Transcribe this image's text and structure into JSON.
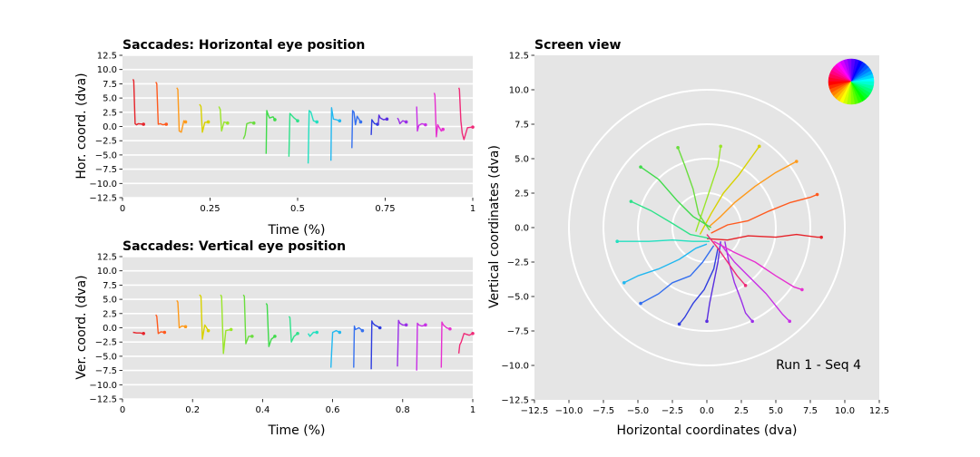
{
  "colors": {
    "panel_bg": "#e5e5e5",
    "grid": "#ffffff",
    "hue_order": [
      "#ff0000",
      "#ff8000",
      "#ffff00",
      "#80ff00",
      "#00ff80",
      "#00ffff",
      "#0080ff",
      "#0000ff",
      "#8000ff",
      "#ff00ff"
    ]
  },
  "chart_data": [
    {
      "id": "horizontal",
      "type": "line",
      "title": "Saccades: Horizontal eye position",
      "xlabel": "Time (%)",
      "ylabel": "Hor. coord. (dva)",
      "xlim": [
        0,
        1
      ],
      "ylim": [
        -12.5,
        12.5
      ],
      "xticks": [
        0,
        0.25,
        0.5,
        0.75,
        1
      ],
      "xtick_labels": [
        "0",
        "0.25",
        "0.5",
        "0.75",
        "1"
      ],
      "yticks": [
        12.5,
        10.0,
        7.5,
        5.0,
        2.5,
        0.0,
        -2.5,
        -5.0,
        -7.5,
        -10.0,
        -12.5
      ],
      "ytick_labels": [
        "12.5",
        "10.0",
        "7.5",
        "5.0",
        "2.5",
        "0.0",
        "−2.5",
        "−5.0",
        "−7.5",
        "−10.0",
        "−12.5"
      ],
      "grid": true,
      "series": [
        {
          "color": "#e6232a",
          "x": [
            0.03,
            0.032,
            0.036,
            0.04,
            0.045,
            0.06
          ],
          "y": [
            8.3,
            8.0,
            0.5,
            0.3,
            0.5,
            0.4
          ]
        },
        {
          "color": "#ff5a1e",
          "x": [
            0.095,
            0.098,
            0.102,
            0.108,
            0.115,
            0.125
          ],
          "y": [
            7.8,
            7.5,
            0.4,
            0.5,
            0.3,
            0.4
          ]
        },
        {
          "color": "#ff9a1a",
          "x": [
            0.155,
            0.158,
            0.162,
            0.168,
            0.175,
            0.18
          ],
          "y": [
            6.8,
            6.5,
            -0.8,
            -1.0,
            1.0,
            0.8
          ]
        },
        {
          "color": "#d8d200",
          "x": [
            0.22,
            0.224,
            0.228,
            0.235,
            0.245
          ],
          "y": [
            3.9,
            3.5,
            -1.0,
            0.7,
            0.8
          ]
        },
        {
          "color": "#9ae52a",
          "x": [
            0.275,
            0.279,
            0.283,
            0.29,
            0.3
          ],
          "y": [
            3.5,
            3.0,
            -0.8,
            0.8,
            0.6
          ]
        },
        {
          "color": "#6add3e",
          "x": [
            0.345,
            0.35,
            0.355,
            0.365,
            0.375
          ],
          "y": [
            -2.2,
            -1.5,
            0.5,
            0.7,
            0.6
          ]
        },
        {
          "color": "#3fdb4a",
          "x": [
            0.41,
            0.412,
            0.416,
            0.42,
            0.43,
            0.435
          ],
          "y": [
            -4.8,
            2.8,
            2.0,
            1.5,
            1.7,
            1.2
          ]
        },
        {
          "color": "#2ee28a",
          "x": [
            0.475,
            0.478,
            0.482,
            0.49,
            0.5
          ],
          "y": [
            -5.3,
            2.3,
            2.0,
            1.5,
            1.0
          ]
        },
        {
          "color": "#22e0c0",
          "x": [
            0.53,
            0.533,
            0.538,
            0.545,
            0.555
          ],
          "y": [
            -6.5,
            2.8,
            2.5,
            1.0,
            0.8
          ]
        },
        {
          "color": "#22b8f0",
          "x": [
            0.595,
            0.597,
            0.602,
            0.61,
            0.62
          ],
          "y": [
            -6.0,
            3.3,
            1.3,
            1.2,
            1.0
          ]
        },
        {
          "color": "#3570ef",
          "x": [
            0.655,
            0.657,
            0.661,
            0.665,
            0.67,
            0.68
          ],
          "y": [
            -3.8,
            2.8,
            2.5,
            0.3,
            1.8,
            0.8
          ]
        },
        {
          "color": "#2f3de0",
          "x": [
            0.71,
            0.712,
            0.716,
            0.72,
            0.728
          ],
          "y": [
            -1.5,
            1.2,
            0.8,
            0.5,
            0.4
          ]
        },
        {
          "color": "#5a2fe0",
          "x": [
            0.73,
            0.732,
            0.736,
            0.745,
            0.755
          ],
          "y": [
            0.3,
            2.0,
            1.5,
            1.2,
            1.3
          ]
        },
        {
          "color": "#9a2fe8",
          "x": [
            0.785,
            0.788,
            0.792,
            0.8,
            0.81
          ],
          "y": [
            1.5,
            1.2,
            0.5,
            1.0,
            0.8
          ]
        },
        {
          "color": "#c82fe6",
          "x": [
            0.84,
            0.842,
            0.846,
            0.855,
            0.865
          ],
          "y": [
            3.5,
            -0.8,
            0.2,
            0.5,
            0.3
          ]
        },
        {
          "color": "#e62fd0",
          "x": [
            0.89,
            0.892,
            0.896,
            0.9,
            0.91,
            0.915
          ],
          "y": [
            5.9,
            5.5,
            -1.8,
            0.3,
            -0.8,
            -0.5
          ]
        },
        {
          "color": "#f02a78",
          "x": [
            0.96,
            0.962,
            0.966,
            0.97,
            0.975,
            0.985,
            1.0
          ],
          "y": [
            6.8,
            6.5,
            1.0,
            -1.2,
            -2.3,
            -0.2,
            -0.1
          ]
        }
      ]
    },
    {
      "id": "vertical",
      "type": "line",
      "title": "Saccades: Vertical eye position",
      "xlabel": "Time (%)",
      "ylabel": "Ver. coord. (dva)",
      "xlim": [
        0,
        1
      ],
      "ylim": [
        -12.5,
        12.5
      ],
      "xticks": [
        0,
        0.2,
        0.4,
        0.6,
        0.8,
        1
      ],
      "xtick_labels": [
        "0",
        "0.2",
        "0.4",
        "0.6",
        "0.8",
        "1"
      ],
      "yticks": [
        12.5,
        10.0,
        7.5,
        5.0,
        2.5,
        0.0,
        -2.5,
        -5.0,
        -7.5,
        -10.0,
        -12.5
      ],
      "ytick_labels": [
        "12.5",
        "10.0",
        "7.5",
        "5.0",
        "2.5",
        "0.0",
        "−2.5",
        "−5.0",
        "−7.5",
        "−10.0",
        "−12.5"
      ],
      "grid": true,
      "series": [
        {
          "color": "#e6232a",
          "x": [
            0.03,
            0.04,
            0.05,
            0.06
          ],
          "y": [
            -0.8,
            -0.9,
            -0.9,
            -1.0
          ]
        },
        {
          "color": "#ff5a1e",
          "x": [
            0.095,
            0.098,
            0.102,
            0.11,
            0.12
          ],
          "y": [
            2.3,
            2.0,
            -1.0,
            -0.7,
            -0.8
          ]
        },
        {
          "color": "#ff9a1a",
          "x": [
            0.155,
            0.158,
            0.162,
            0.17,
            0.18
          ],
          "y": [
            4.8,
            4.5,
            0.0,
            0.3,
            0.2
          ]
        },
        {
          "color": "#d8d200",
          "x": [
            0.22,
            0.224,
            0.228,
            0.235,
            0.245
          ],
          "y": [
            5.8,
            5.5,
            -2.0,
            0.5,
            -0.5
          ]
        },
        {
          "color": "#9ae52a",
          "x": [
            0.28,
            0.283,
            0.288,
            0.295,
            0.31
          ],
          "y": [
            5.8,
            5.5,
            -4.5,
            -0.5,
            -0.3
          ]
        },
        {
          "color": "#6add3e",
          "x": [
            0.345,
            0.348,
            0.352,
            0.36,
            0.37
          ],
          "y": [
            5.8,
            5.5,
            -2.8,
            -1.5,
            -1.5
          ]
        },
        {
          "color": "#3fdb4a",
          "x": [
            0.41,
            0.413,
            0.418,
            0.425,
            0.435
          ],
          "y": [
            4.3,
            4.0,
            -3.3,
            -2.0,
            -1.5
          ]
        },
        {
          "color": "#2ee28a",
          "x": [
            0.475,
            0.478,
            0.482,
            0.49,
            0.5
          ],
          "y": [
            2.0,
            1.8,
            -2.5,
            -1.5,
            -1.0
          ]
        },
        {
          "color": "#22e0c0",
          "x": [
            0.53,
            0.535,
            0.545,
            0.555
          ],
          "y": [
            -1.0,
            -1.5,
            -0.8,
            -0.8
          ]
        },
        {
          "color": "#22b8f0",
          "x": [
            0.595,
            0.597,
            0.6,
            0.61,
            0.62
          ],
          "y": [
            -7.0,
            -4.5,
            -0.8,
            -0.5,
            -0.8
          ]
        },
        {
          "color": "#3570ef",
          "x": [
            0.66,
            0.662,
            0.665,
            0.675,
            0.685
          ],
          "y": [
            -7.0,
            0.3,
            -0.3,
            0.0,
            -0.5
          ]
        },
        {
          "color": "#2f3de0",
          "x": [
            0.71,
            0.712,
            0.715,
            0.72,
            0.735
          ],
          "y": [
            -7.3,
            1.2,
            0.8,
            0.5,
            0.0
          ]
        },
        {
          "color": "#9a2fe8",
          "x": [
            0.785,
            0.788,
            0.792,
            0.8,
            0.81
          ],
          "y": [
            -6.8,
            1.3,
            0.8,
            0.5,
            0.5
          ]
        },
        {
          "color": "#c82fe6",
          "x": [
            0.84,
            0.842,
            0.846,
            0.855,
            0.865
          ],
          "y": [
            -7.5,
            0.8,
            0.5,
            0.3,
            0.5
          ]
        },
        {
          "color": "#e62fd0",
          "x": [
            0.91,
            0.912,
            0.916,
            0.925,
            0.935
          ],
          "y": [
            -7.0,
            1.0,
            0.5,
            0.0,
            -0.2
          ]
        },
        {
          "color": "#f02a78",
          "x": [
            0.96,
            0.963,
            0.967,
            0.975,
            0.99,
            1.0
          ],
          "y": [
            -4.5,
            -3.0,
            -2.5,
            -1.0,
            -1.3,
            -1.0
          ]
        }
      ]
    },
    {
      "id": "screen",
      "type": "line",
      "title": "Screen view",
      "xlabel": "Horizontal coordinates (dva)",
      "ylabel": "Vertical coordinates (dva)",
      "xlim": [
        -12.5,
        12.5
      ],
      "ylim": [
        -12.5,
        12.5
      ],
      "xticks": [
        -12.5,
        -10.0,
        -7.5,
        -5.0,
        -2.5,
        0.0,
        2.5,
        5.0,
        7.5,
        10.0,
        12.5
      ],
      "xtick_labels": [
        "−12.5",
        "−10.0",
        "−7.5",
        "−5.0",
        "−2.5",
        "0.0",
        "2.5",
        "5.0",
        "7.5",
        "10.0",
        "12.5"
      ],
      "yticks": [
        12.5,
        10.0,
        7.5,
        5.0,
        2.5,
        0.0,
        -2.5,
        -5.0,
        -7.5,
        -10.0,
        -12.5
      ],
      "ytick_labels": [
        "12.5",
        "10.0",
        "7.5",
        "5.0",
        "2.5",
        "0.0",
        "−2.5",
        "−5.0",
        "−7.5",
        "−10.0",
        "−12.5"
      ],
      "grid": false,
      "circles_radii": [
        2.5,
        5,
        7.5,
        10
      ],
      "annotation": "Run 1 - Seq 4",
      "legend": "hue wheel top-right",
      "series": [
        {
          "color": "#e6232a",
          "x": [
            0.0,
            1.5,
            3.0,
            5.0,
            6.5,
            8.0,
            8.3
          ],
          "y": [
            -0.8,
            -0.9,
            -0.6,
            -0.7,
            -0.5,
            -0.7,
            -0.7
          ]
        },
        {
          "color": "#ff5a1e",
          "x": [
            0.3,
            1.5,
            3.0,
            4.5,
            6.0,
            7.5,
            8.0
          ],
          "y": [
            -0.4,
            0.2,
            0.5,
            1.2,
            1.8,
            2.2,
            2.4
          ]
        },
        {
          "color": "#ff9a1a",
          "x": [
            0.2,
            1.0,
            2.0,
            3.5,
            5.0,
            6.5
          ],
          "y": [
            0.1,
            0.8,
            1.8,
            3.0,
            4.0,
            4.8
          ]
        },
        {
          "color": "#d8d200",
          "x": [
            -0.5,
            0.3,
            1.2,
            2.3,
            3.3,
            3.8
          ],
          "y": [
            -0.5,
            1.0,
            2.5,
            3.8,
            5.2,
            5.9
          ]
        },
        {
          "color": "#9ae52a",
          "x": [
            -0.8,
            -0.2,
            0.3,
            0.8,
            1.0
          ],
          "y": [
            -0.3,
            1.5,
            3.0,
            4.5,
            5.9
          ]
        },
        {
          "color": "#6add3e",
          "x": [
            0.2,
            -0.6,
            -1.0,
            -1.6,
            -2.1
          ],
          "y": [
            -0.2,
            1.0,
            2.8,
            4.5,
            5.8
          ]
        },
        {
          "color": "#3fdb4a",
          "x": [
            0.3,
            -1.0,
            -2.2,
            -3.5,
            -4.8
          ],
          "y": [
            0.0,
            0.8,
            2.0,
            3.5,
            4.4
          ]
        },
        {
          "color": "#2ee28a",
          "x": [
            0.3,
            -1.2,
            -2.5,
            -4.0,
            -5.5
          ],
          "y": [
            -0.8,
            -0.5,
            0.3,
            1.2,
            1.9
          ]
        },
        {
          "color": "#22e0c0",
          "x": [
            0.2,
            -1.0,
            -2.5,
            -4.2,
            -6.5
          ],
          "y": [
            -1.0,
            -1.0,
            -0.9,
            -1.0,
            -1.0
          ]
        },
        {
          "color": "#22b8f0",
          "x": [
            0.0,
            -0.8,
            -2.0,
            -3.5,
            -5.0,
            -6.0
          ],
          "y": [
            -1.2,
            -1.5,
            -2.3,
            -3.0,
            -3.5,
            -4.0
          ]
        },
        {
          "color": "#3570ef",
          "x": [
            0.5,
            -0.3,
            -1.2,
            -2.5,
            -3.5,
            -4.8
          ],
          "y": [
            -1.3,
            -2.5,
            -3.5,
            -4.0,
            -4.8,
            -5.5
          ]
        },
        {
          "color": "#2f3de0",
          "x": [
            0.8,
            0.5,
            -0.2,
            -1.0,
            -1.6,
            -2.0
          ],
          "y": [
            -1.5,
            -3.0,
            -4.5,
            -5.5,
            -6.5,
            -7.0
          ]
        },
        {
          "color": "#5a2fe0",
          "x": [
            1.0,
            0.8,
            0.5,
            0.2,
            0.0
          ],
          "y": [
            -1.0,
            -2.5,
            -4.0,
            -5.5,
            -6.8
          ]
        },
        {
          "color": "#9a2fe8",
          "x": [
            1.3,
            1.6,
            2.0,
            2.5,
            2.8,
            3.3
          ],
          "y": [
            -1.0,
            -2.5,
            -4.0,
            -5.3,
            -6.2,
            -6.8
          ]
        },
        {
          "color": "#c82fe6",
          "x": [
            1.0,
            2.0,
            3.0,
            4.3,
            5.5,
            6.0
          ],
          "y": [
            -1.2,
            -2.5,
            -3.5,
            -4.8,
            -6.3,
            -6.8
          ]
        },
        {
          "color": "#e62fd0",
          "x": [
            0.5,
            2.0,
            3.5,
            5.0,
            6.3,
            6.9
          ],
          "y": [
            -1.0,
            -1.8,
            -2.5,
            -3.5,
            -4.3,
            -4.5
          ]
        },
        {
          "color": "#f02a78",
          "x": [
            0.0,
            0.8,
            1.5,
            2.2,
            2.8
          ],
          "y": [
            -0.5,
            -1.5,
            -2.5,
            -3.5,
            -4.2
          ]
        }
      ]
    }
  ]
}
